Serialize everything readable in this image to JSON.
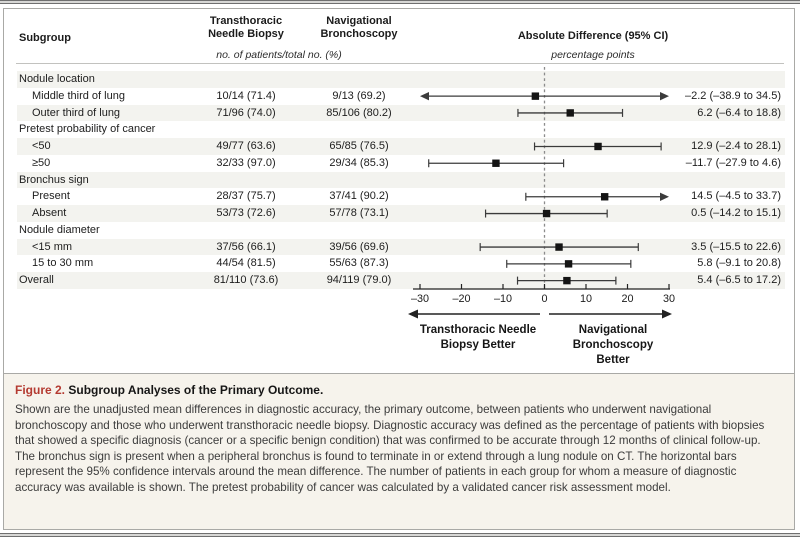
{
  "header": {
    "subgroup": "Subgroup",
    "tnb": [
      "Transthoracic",
      "Needle Biopsy"
    ],
    "nav": [
      "Navigational",
      "Bronchoscopy"
    ],
    "patients_note": "no. of patients/total no. (%)",
    "diff": "Absolute Difference (95% CI)",
    "diff_units": "percentage points"
  },
  "chart_data": {
    "type": "scatter",
    "variant": "forest-plot",
    "title": "Absolute Difference (95% CI)",
    "units": "percentage points",
    "xlim": [
      -30,
      30
    ],
    "xtick_values": [
      -30,
      -20,
      -10,
      0,
      10,
      20,
      30
    ],
    "xticks": [
      "–30",
      "–20",
      "–10",
      "0",
      "10",
      "20",
      "30"
    ],
    "reference_line": 0,
    "grid": false,
    "rows": [
      {
        "label": "Nodule location",
        "type": "group",
        "indent": false,
        "shaded": true
      },
      {
        "label": "Middle third of lung",
        "type": "data",
        "indent": true,
        "shaded": false,
        "tnb": "10/14 (71.4)",
        "nav": "9/13 (69.2)",
        "estimate": -2.2,
        "ci_low": -38.9,
        "ci_high": 34.5,
        "ci_text": "–2.2 (–38.9 to 34.5)"
      },
      {
        "label": "Outer third of lung",
        "type": "data",
        "indent": true,
        "shaded": true,
        "tnb": "71/96 (74.0)",
        "nav": "85/106 (80.2)",
        "estimate": 6.2,
        "ci_low": -6.4,
        "ci_high": 18.8,
        "ci_text": "6.2 (–6.4 to 18.8)"
      },
      {
        "label": "Pretest probability of cancer",
        "type": "group",
        "indent": false,
        "shaded": false
      },
      {
        "label": "<50",
        "type": "data",
        "indent": true,
        "shaded": true,
        "tnb": "49/77 (63.6)",
        "nav": "65/85 (76.5)",
        "estimate": 12.9,
        "ci_low": -2.4,
        "ci_high": 28.1,
        "ci_text": "12.9 (–2.4 to 28.1)"
      },
      {
        "label": "≥50",
        "type": "data",
        "indent": true,
        "shaded": false,
        "tnb": "32/33 (97.0)",
        "nav": "29/34 (85.3)",
        "estimate": -11.7,
        "ci_low": -27.9,
        "ci_high": 4.6,
        "ci_text": "–11.7 (–27.9 to 4.6)"
      },
      {
        "label": "Bronchus sign",
        "type": "group",
        "indent": false,
        "shaded": true
      },
      {
        "label": "Present",
        "type": "data",
        "indent": true,
        "shaded": false,
        "tnb": "28/37 (75.7)",
        "nav": "37/41 (90.2)",
        "estimate": 14.5,
        "ci_low": -4.5,
        "ci_high": 33.7,
        "ci_text": "14.5 (–4.5 to 33.7)"
      },
      {
        "label": "Absent",
        "type": "data",
        "indent": true,
        "shaded": true,
        "tnb": "53/73 (72.6)",
        "nav": "57/78 (73.1)",
        "estimate": 0.5,
        "ci_low": -14.2,
        "ci_high": 15.1,
        "ci_text": "0.5 (–14.2 to 15.1)"
      },
      {
        "label": "Nodule diameter",
        "type": "group",
        "indent": false,
        "shaded": false
      },
      {
        "label": "<15 mm",
        "type": "data",
        "indent": true,
        "shaded": true,
        "tnb": "37/56 (66.1)",
        "nav": "39/56 (69.6)",
        "estimate": 3.5,
        "ci_low": -15.5,
        "ci_high": 22.6,
        "ci_text": "3.5 (–15.5 to 22.6)"
      },
      {
        "label": "15 to 30 mm",
        "type": "data",
        "indent": true,
        "shaded": false,
        "tnb": "44/54 (81.5)",
        "nav": "55/63 (87.3)",
        "estimate": 5.8,
        "ci_low": -9.1,
        "ci_high": 20.8,
        "ci_text": "5.8 (–9.1 to 20.8)"
      },
      {
        "label": "Overall",
        "type": "data",
        "indent": false,
        "shaded": true,
        "tnb": "81/110 (73.6)",
        "nav": "94/119 (79.0)",
        "estimate": 5.4,
        "ci_low": -6.5,
        "ci_high": 17.2,
        "ci_text": "5.4 (–6.5 to 17.2)"
      }
    ],
    "direction_labels": {
      "left": [
        "Transthoracic Needle",
        "Biopsy Better"
      ],
      "right": [
        "Navigational",
        "Bronchoscopy",
        "Better"
      ]
    }
  },
  "caption": {
    "figure_label": "Figure 2.",
    "title": "Subgroup Analyses of the Primary Outcome.",
    "body": "Shown are the unadjusted mean differences in diagnostic accuracy, the primary outcome, between patients who underwent navigational bronchoscopy and those who underwent transthoracic needle biopsy. Diagnostic accuracy was defined as the percentage of patients with biopsies that showed a specific diagnosis (cancer or a specific benign condition) that was confirmed to be accurate through 12 months of clinical follow-up. The bronchus sign is present when a peripheral bronchus is found to terminate in or extend through a lung nodule on CT. The horizontal bars represent the 95% confidence intervals around the mean difference. The number of patients in each group for whom a measure of diagnostic accuracy was available is shown. The pretest probability of cancer was calculated by a validated cancer risk assessment model."
  },
  "colors": {
    "accent_red": "#b43a31",
    "row_shade": "#f3f3ef",
    "caption_bg": "#f6f3ec",
    "border": "#a9a9a6",
    "ci_line": "#3b3b3b",
    "marker": "#141414",
    "reference_dash": "#8c8c8c"
  }
}
